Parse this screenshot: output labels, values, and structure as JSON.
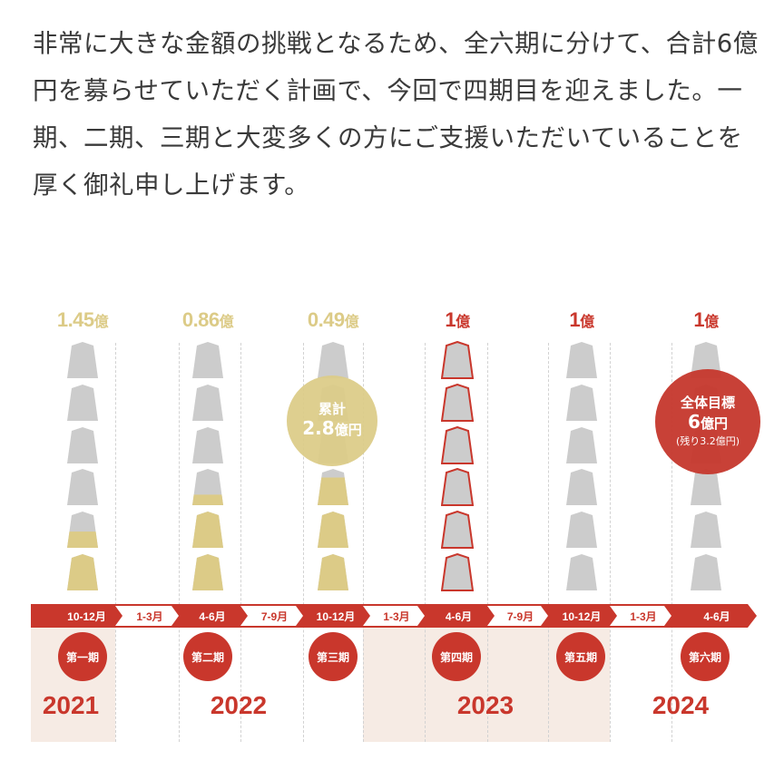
{
  "paragraph": "非常に大きな金額の挑戦となるため、全六期に分けて、合計6億円を募らせていただく計画で、今回で四期目を迎えました。一期、二期、三期と大変多くの方にご支援いただいていることを厚く御礼申し上げます。",
  "colors": {
    "gold": "#dccb87",
    "red": "#c9372c",
    "gray_piece": "#cccccc",
    "band_bg": "#f6ebe4"
  },
  "columns": [
    {
      "amount": "1.45",
      "unit": "億",
      "color": "gold",
      "fills": [
        0,
        0,
        0,
        0,
        0.45,
        1
      ],
      "outlined": false
    },
    {
      "amount": "0.86",
      "unit": "億",
      "color": "gold",
      "fills": [
        0,
        0,
        0,
        0.3,
        1,
        1
      ],
      "outlined": false
    },
    {
      "amount": "0.49",
      "unit": "億",
      "color": "gold",
      "fills": [
        0,
        0,
        0,
        0.75,
        1,
        1
      ],
      "outlined": false
    },
    {
      "amount": "1",
      "unit": "億",
      "color": "red",
      "fills": [
        0,
        0,
        0,
        0,
        0,
        0
      ],
      "outlined": true
    },
    {
      "amount": "1",
      "unit": "億",
      "color": "red",
      "fills": [
        0,
        0,
        0,
        0,
        0,
        0
      ],
      "outlined": false
    },
    {
      "amount": "1",
      "unit": "億",
      "color": "red",
      "fills": [
        0,
        0,
        0,
        0,
        0,
        0
      ],
      "outlined": false
    }
  ],
  "cumulative_bubble": {
    "label": "累計",
    "value": "2.8",
    "unit": "億円"
  },
  "target_bubble": {
    "label": "全体目標",
    "value": "6",
    "unit": "億円",
    "note": "(残り3.2億円)"
  },
  "timeline": [
    {
      "label": "10-12月",
      "active": true
    },
    {
      "label": "1-3月",
      "active": false
    },
    {
      "label": "4-6月",
      "active": true
    },
    {
      "label": "7-9月",
      "active": false
    },
    {
      "label": "10-12月",
      "active": true
    },
    {
      "label": "1-3月",
      "active": false
    },
    {
      "label": "4-6月",
      "active": true
    },
    {
      "label": "7-9月",
      "active": false
    },
    {
      "label": "10-12月",
      "active": true
    },
    {
      "label": "1-3月",
      "active": false
    },
    {
      "label": "4-6月",
      "active": true
    }
  ],
  "periods": [
    "第一期",
    "第二期",
    "第三期",
    "第四期",
    "第五期",
    "第六期"
  ],
  "years": [
    "2021",
    "2022",
    "2023",
    "2024"
  ],
  "chart_data": {
    "type": "bar",
    "title": "",
    "categories": [
      "第一期",
      "第二期",
      "第三期",
      "第四期",
      "第五期",
      "第六期"
    ],
    "values": [
      1.45,
      0.86,
      0.49,
      1,
      1,
      1
    ],
    "unit": "億円",
    "cumulative": 2.8,
    "target_total": 6,
    "remaining": 3.2
  }
}
